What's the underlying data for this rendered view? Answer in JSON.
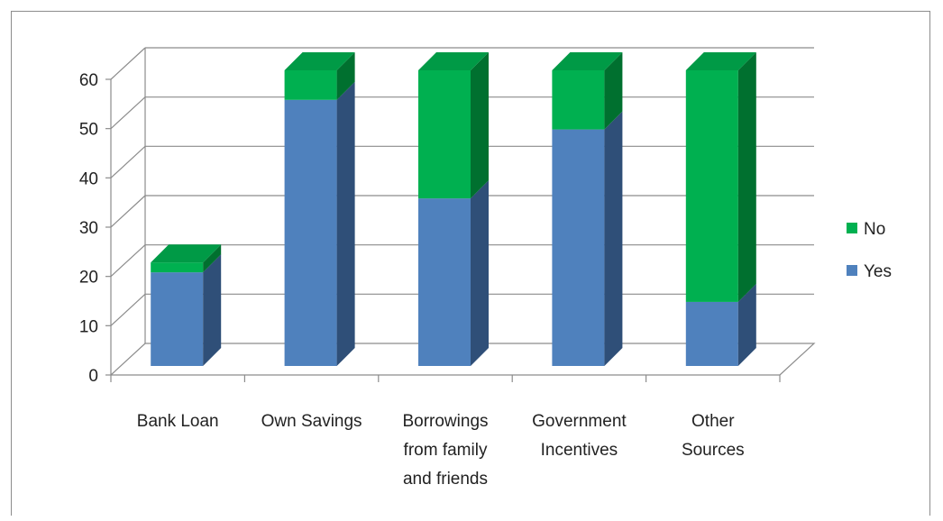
{
  "chart_data": {
    "type": "bar",
    "stacked": true,
    "three_d": true,
    "categories": [
      [
        "Bank Loan"
      ],
      [
        "Own Savings"
      ],
      [
        "Borrowings",
        "from family",
        "and friends"
      ],
      [
        "Government",
        "Incentives"
      ],
      [
        "Other",
        "Sources"
      ]
    ],
    "series": [
      {
        "name": "Yes",
        "values": [
          19,
          54,
          34,
          48,
          13
        ]
      },
      {
        "name": "No",
        "values": [
          2,
          6,
          26,
          12,
          47
        ]
      }
    ],
    "ylim": [
      0,
      60
    ],
    "yticks": [
      0,
      10,
      20,
      30,
      40,
      50,
      60
    ],
    "grid": true,
    "legend_position": "right",
    "legend": [
      "No",
      "Yes"
    ],
    "colors": {
      "Yes": {
        "front": "#4f81bd",
        "side": "#2f4f78",
        "top": "#4a7ab4"
      },
      "No": {
        "front": "#00b050",
        "side": "#00702f",
        "top": "#009a46"
      },
      "grid": "#8c8c8c"
    }
  }
}
